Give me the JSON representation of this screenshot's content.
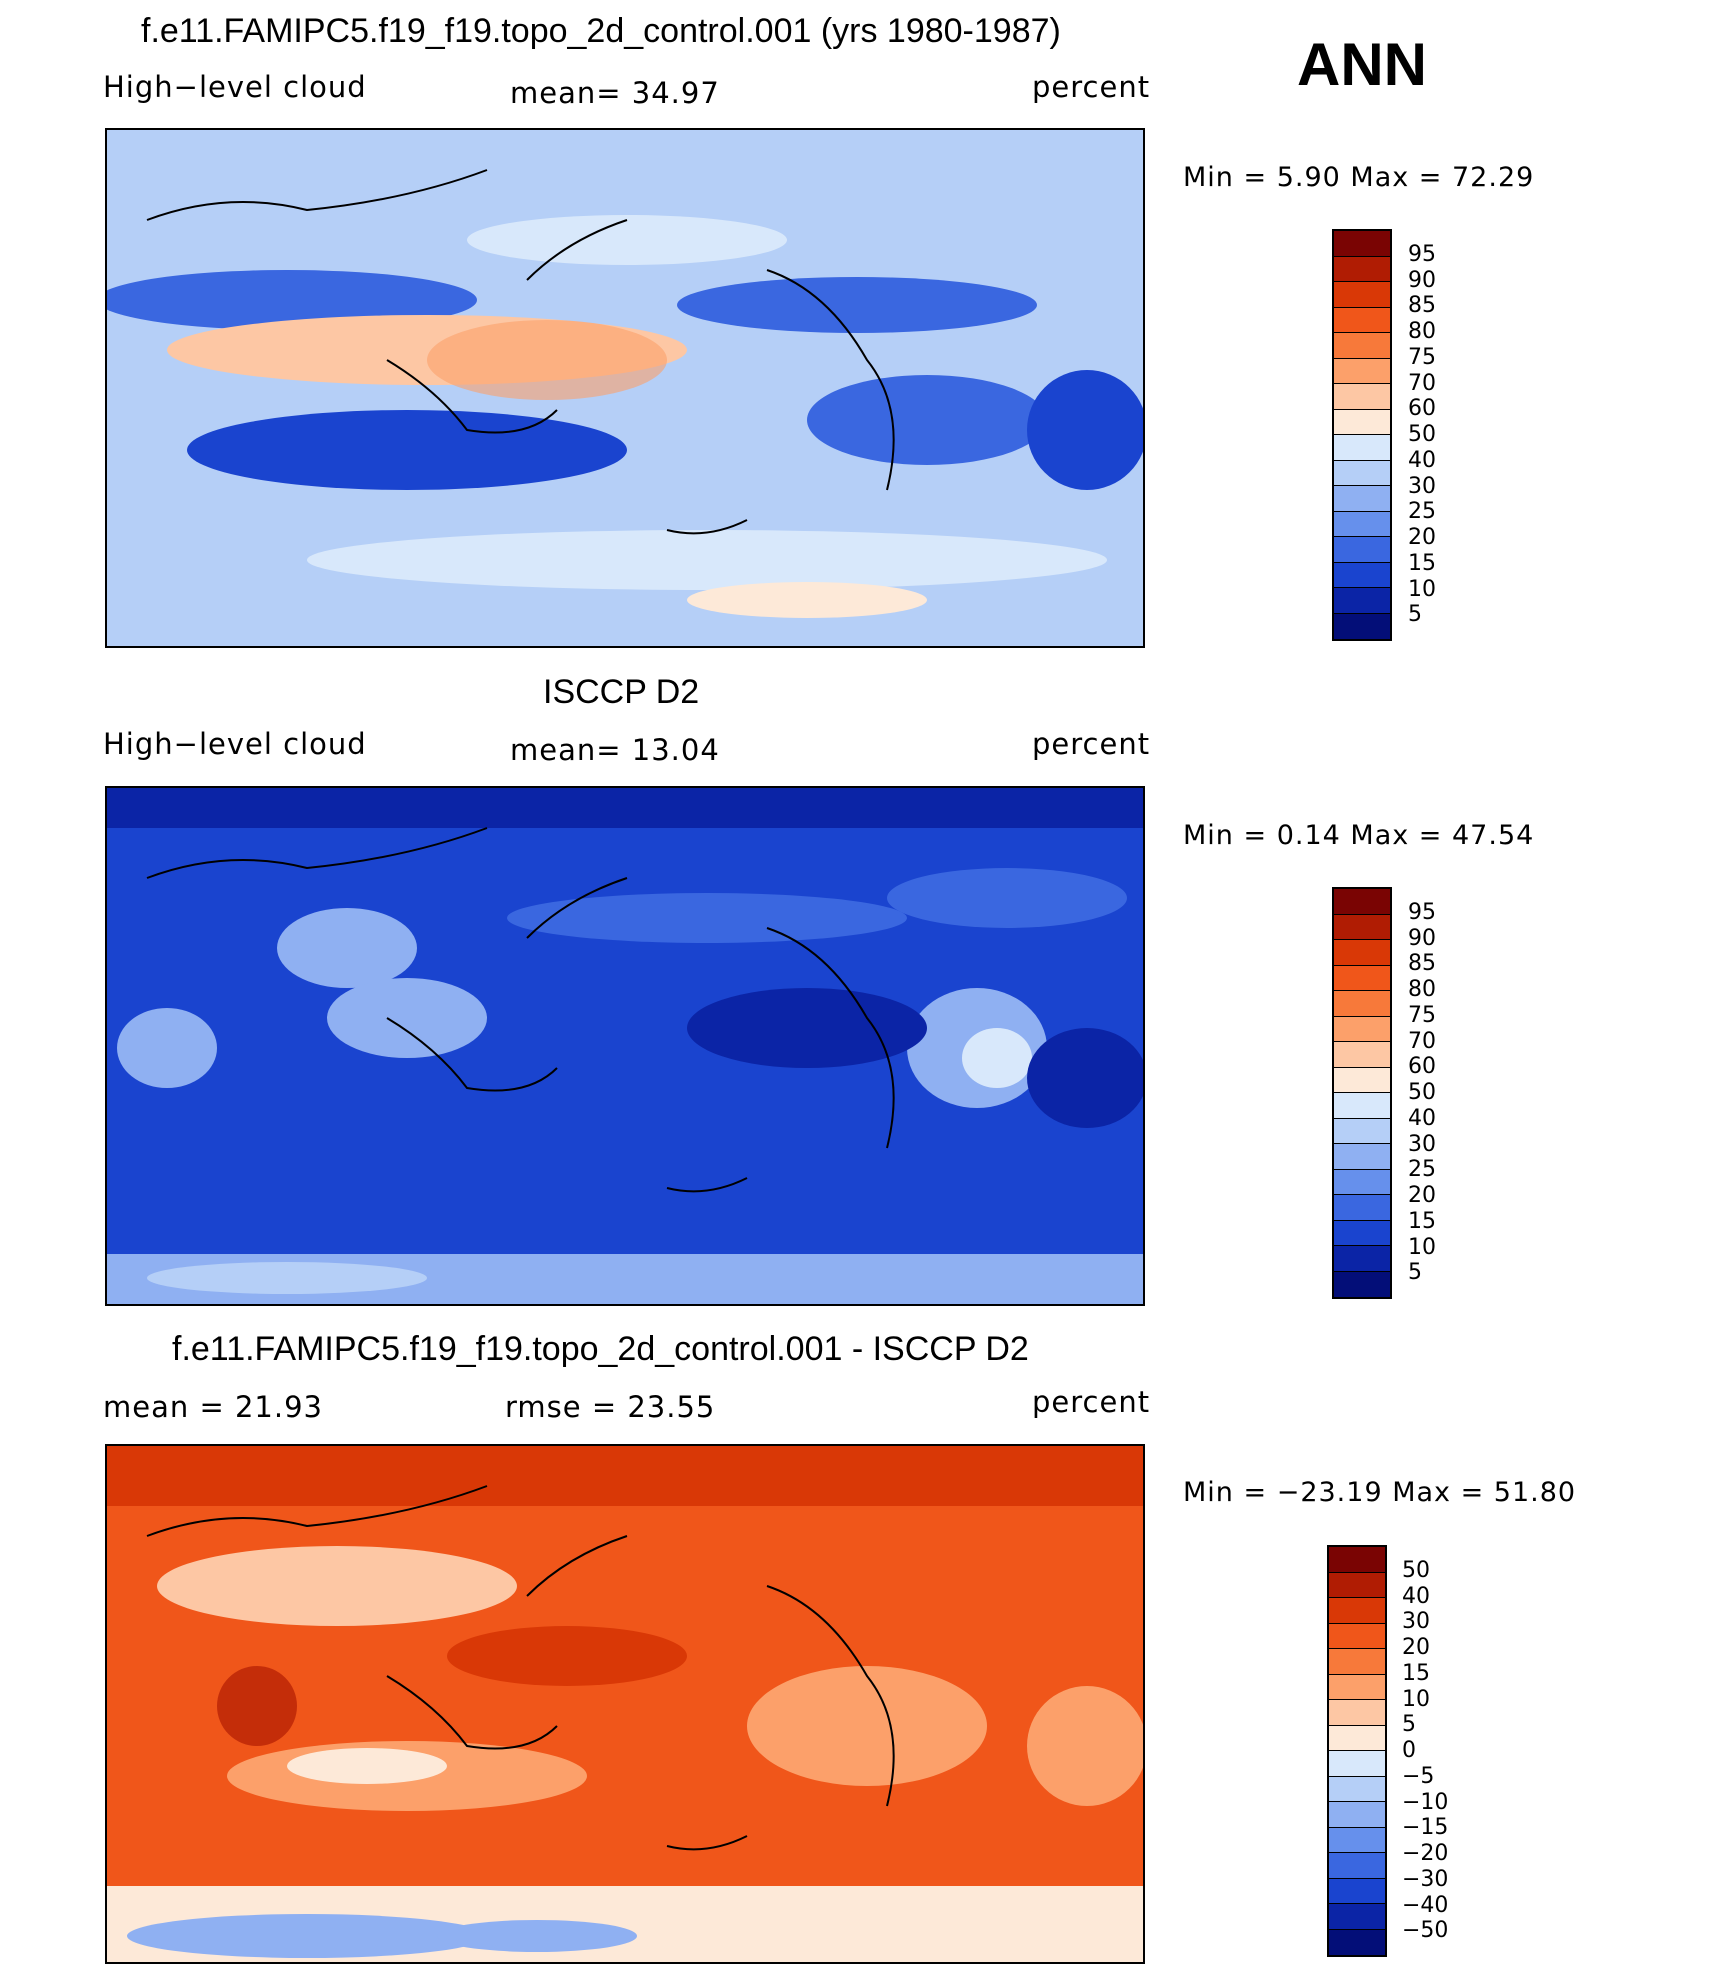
{
  "header": {
    "season": "ANN"
  },
  "panels": [
    {
      "title": "f.e11.FAMIPC5.f19_f19.topo_2d_control.001 (yrs 1980-1987)",
      "left_label": "High−level cloud",
      "center_label": "mean=   34.97",
      "right_label": "percent",
      "minmax": "Min =    5.90  Max =   72.29",
      "colorbar_labels": [
        "95",
        "90",
        "85",
        "80",
        "75",
        "70",
        "60",
        "50",
        "40",
        "30",
        "25",
        "20",
        "15",
        "10",
        "5"
      ]
    },
    {
      "title": "ISCCP D2",
      "left_label": "High−level cloud",
      "center_label": "mean=   13.04",
      "right_label": "percent",
      "minmax": "Min =    0.14  Max =   47.54",
      "colorbar_labels": [
        "95",
        "90",
        "85",
        "80",
        "75",
        "70",
        "60",
        "50",
        "40",
        "30",
        "25",
        "20",
        "15",
        "10",
        "5"
      ]
    },
    {
      "title": "f.e11.FAMIPC5.f19_f19.topo_2d_control.001 - ISCCP D2",
      "left_label": "mean =   21.93",
      "center_label": "rmse =   23.55",
      "right_label": "percent",
      "minmax": "Min = −23.19  Max =   51.80",
      "colorbar_labels": [
        "50",
        "40",
        "30",
        "20",
        "15",
        "10",
        "5",
        "0",
        "−5",
        "−10",
        "−15",
        "−20",
        "−30",
        "−40",
        "−50"
      ]
    }
  ],
  "colors": {
    "colorbar": [
      "#7a0403",
      "#b01c03",
      "#d93806",
      "#f0561a",
      "#f7793a",
      "#fca06a",
      "#fdc7a4",
      "#fde9d8",
      "#d8e8fb",
      "#b5cff7",
      "#8fb0f2",
      "#6690ec",
      "#3a67e0",
      "#1a44cf",
      "#0b24a6",
      "#030e78"
    ],
    "map_bg": [
      "#b5cff7",
      "#1a44cf",
      "#f0561a"
    ]
  }
}
